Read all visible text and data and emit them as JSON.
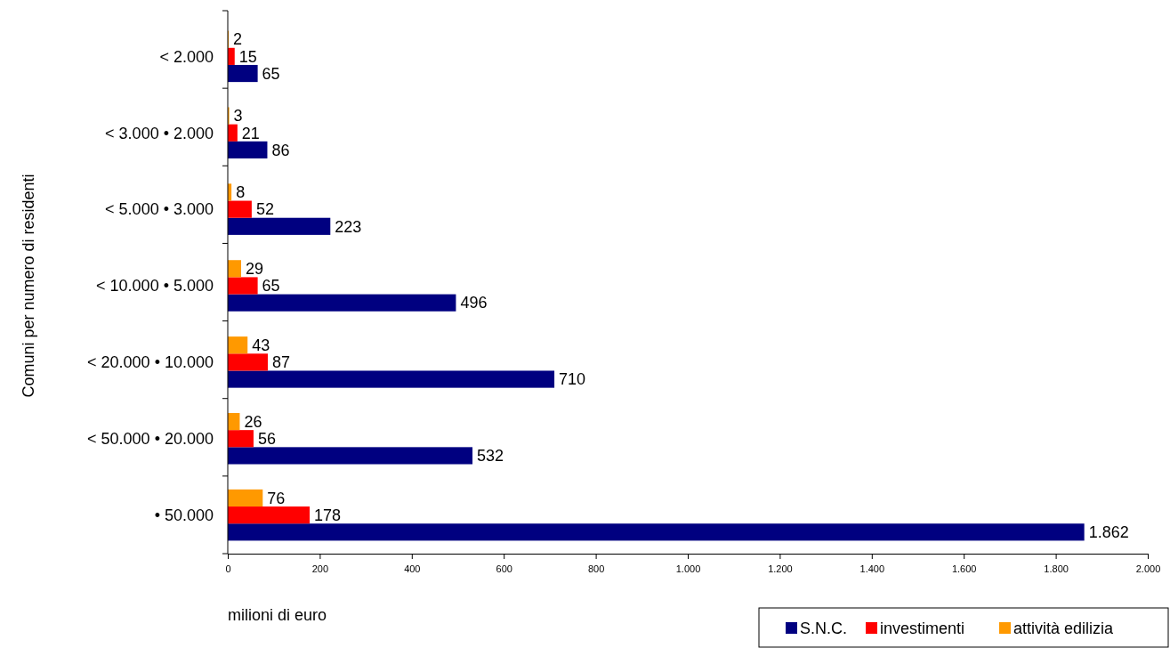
{
  "chart_data": {
    "type": "bar",
    "orientation": "horizontal",
    "categories": [
      "< 2.000",
      "< 3.000 • 2.000",
      "< 5.000 • 3.000",
      "< 10.000 • 5.000",
      "< 20.000 • 10.000",
      "< 50.000 • 20.000",
      "• 50.000"
    ],
    "series": [
      {
        "name": "S.N.C.",
        "color": "#000080",
        "values": [
          65,
          86,
          223,
          496,
          710,
          532,
          1862
        ],
        "value_labels": [
          "65",
          "86",
          "223",
          "496",
          "710",
          "532",
          "1.862"
        ]
      },
      {
        "name": "investimenti",
        "color": "#ff0000",
        "values": [
          15,
          21,
          52,
          65,
          87,
          56,
          178
        ],
        "value_labels": [
          "15",
          "21",
          "52",
          "65",
          "87",
          "56",
          "178"
        ]
      },
      {
        "name": "attività edilizia",
        "color": "#ff9900",
        "values": [
          2,
          3,
          8,
          29,
          43,
          26,
          76
        ],
        "value_labels": [
          "2",
          "3",
          "8",
          "29",
          "43",
          "26",
          "76"
        ]
      }
    ],
    "xlim": [
      0,
      2000
    ],
    "xticks": [
      0,
      200,
      400,
      600,
      800,
      {
        "value": 1000,
        "label": "1.000"
      },
      {
        "value": 1200,
        "label": "1.200"
      },
      {
        "value": 1400,
        "label": "1.400"
      },
      {
        "value": 1600,
        "label": "1.600"
      },
      {
        "value": 1800,
        "label": "1.800"
      },
      {
        "value": 2000,
        "label": "2.000"
      }
    ],
    "xlabel": "milioni di euro",
    "ylabel": "Comuni per numero di residenti",
    "grid": false,
    "legend": "bottom right"
  }
}
